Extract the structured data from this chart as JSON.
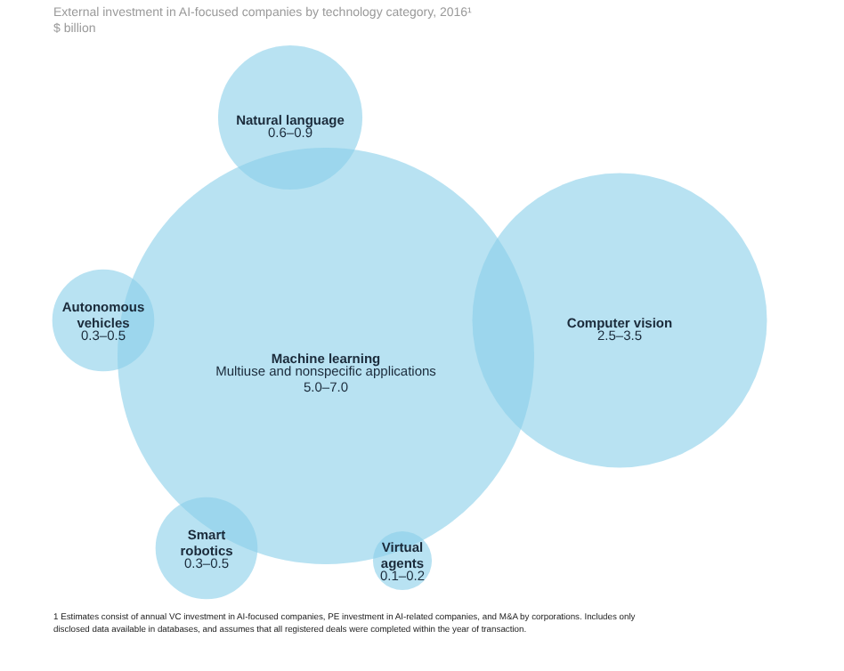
{
  "chart_data": {
    "type": "other",
    "title": "External investment in AI-focused companies by technology category, 2016¹",
    "subtitle": "$ billion",
    "categories": [
      "Natural language",
      "Autonomous vehicles",
      "Machine learning",
      "Computer vision",
      "Smart robotics",
      "Virtual agents"
    ],
    "values": [
      0.6,
      0.3,
      5.0,
      2.5,
      0.3,
      0.1
    ],
    "value_labels": [
      "0.6–0.9",
      "0.3–0.5",
      "5.0–7.0",
      "2.5–3.5",
      "0.3–0.5",
      "0.1–0.2"
    ],
    "color": "#89cfe9",
    "annotations": [
      {
        "text": "Multiuse and nonspecific applications",
        "x": "Machine learning"
      },
      "1  Estimates consist of annual VC investment in AI-focused companies, PE investment in AI-related companies, and M&A by corporations. Includes only disclosed data available in databases, and assumes that all registered deals were completed within the year of transaction."
    ]
  }
}
